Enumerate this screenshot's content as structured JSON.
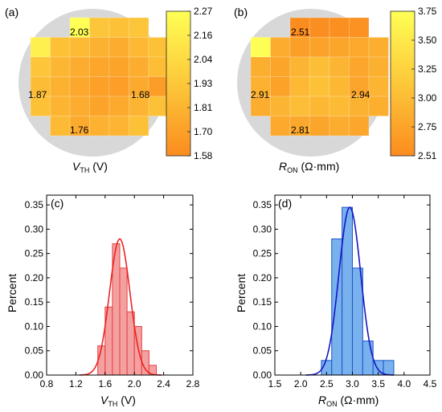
{
  "panels": {
    "a": {
      "label": "(a)",
      "xlabel_main": "V",
      "xlabel_sub": "TH",
      "xlabel_unit": " (V)",
      "colorbar": {
        "ticks": [
          "2.27",
          "2.16",
          "2.04",
          "1.93",
          "1.81",
          "1.70",
          "1.58"
        ]
      },
      "annotations": [
        "2.03",
        "1.87",
        "1.68",
        "1.76"
      ]
    },
    "b": {
      "label": "(b)",
      "xlabel_main": "R",
      "xlabel_sub": "ON",
      "xlabel_unit": " (Ω·mm)",
      "colorbar": {
        "ticks": [
          "3.75",
          "3.50",
          "3.25",
          "3.00",
          "2.75",
          "2.51"
        ]
      },
      "annotations": [
        "2.51",
        "2.91",
        "2.94",
        "2.81"
      ]
    },
    "c": {
      "label": "(c)",
      "ylabel": "Percent",
      "xlabel_main": "V",
      "xlabel_sub": "TH",
      "xlabel_unit": " (V)"
    },
    "d": {
      "label": "(d)",
      "ylabel": "Percent",
      "xlabel_main": "R",
      "xlabel_sub": "ON",
      "xlabel_unit": " (Ω·mm)"
    }
  },
  "colors": {
    "hist_c_fill": "#f4a0a0",
    "hist_c_edge": "#e34040",
    "fit_c": "#ee2222",
    "hist_d_fill": "#79b0ee",
    "hist_d_edge": "#1a57c4",
    "fit_d": "#1515c8",
    "wafer_bg": "#d8d8d8",
    "map_low": "#fb8c1f",
    "map_high": "#ffff55"
  },
  "chart_data": [
    {
      "type": "heatmap",
      "panel": "a",
      "title": "",
      "colorbar_range": [
        1.58,
        2.27
      ],
      "grid": [
        [
          null,
          null,
          2.27,
          1.92,
          1.9,
          1.92,
          null
        ],
        [
          2.18,
          1.9,
          1.86,
          1.8,
          1.78,
          1.85,
          1.9
        ],
        [
          1.92,
          1.83,
          1.78,
          1.74,
          1.72,
          1.78,
          1.88
        ],
        [
          1.87,
          1.8,
          1.75,
          1.7,
          1.69,
          1.76,
          1.68
        ],
        [
          1.9,
          1.82,
          1.78,
          1.72,
          1.76,
          1.82,
          1.9
        ],
        [
          null,
          1.86,
          1.76,
          1.8,
          1.82,
          1.9,
          null
        ],
        [
          null,
          null,
          null,
          null,
          null,
          null,
          null
        ]
      ]
    },
    {
      "type": "heatmap",
      "panel": "b",
      "title": "",
      "colorbar_range": [
        2.51,
        3.75
      ],
      "grid": [
        [
          null,
          null,
          2.51,
          2.53,
          2.55,
          2.57,
          null
        ],
        [
          3.75,
          2.85,
          2.72,
          2.75,
          2.78,
          2.82,
          2.88
        ],
        [
          2.88,
          2.78,
          2.95,
          3.05,
          2.95,
          2.8,
          2.9
        ],
        [
          2.91,
          2.75,
          3.0,
          3.08,
          2.98,
          2.78,
          2.94
        ],
        [
          2.85,
          2.95,
          3.05,
          2.98,
          3.02,
          2.92,
          2.88
        ],
        [
          null,
          2.82,
          2.81,
          2.78,
          2.85,
          2.8,
          null
        ],
        [
          null,
          null,
          null,
          null,
          null,
          null,
          null
        ]
      ]
    },
    {
      "type": "bar",
      "panel": "c",
      "xlim": [
        0.8,
        2.8
      ],
      "ylim": [
        0,
        0.37
      ],
      "xticks": [
        "0.8",
        "1.2",
        "1.6",
        "2.0",
        "2.4",
        "2.8"
      ],
      "yticks": [
        "0.00",
        "0.05",
        "0.10",
        "0.15",
        "0.20",
        "0.25",
        "0.30",
        "0.35"
      ],
      "bin_width": 0.1,
      "bins": [
        {
          "x0": 1.5,
          "value": 0.06
        },
        {
          "x0": 1.6,
          "value": 0.14
        },
        {
          "x0": 1.7,
          "value": 0.27
        },
        {
          "x0": 1.8,
          "value": 0.22
        },
        {
          "x0": 1.9,
          "value": 0.13
        },
        {
          "x0": 2.0,
          "value": 0.1
        },
        {
          "x0": 2.1,
          "value": 0.05
        },
        {
          "x0": 2.2,
          "value": 0.02
        }
      ],
      "fit": {
        "type": "gaussian",
        "mean": 1.8,
        "sigma": 0.14,
        "peak": 0.28,
        "range": [
          1.25,
          2.37
        ]
      }
    },
    {
      "type": "bar",
      "panel": "d",
      "xlim": [
        1.5,
        4.5
      ],
      "ylim": [
        0,
        0.37
      ],
      "xticks": [
        "1.5",
        "2.0",
        "2.5",
        "3.0",
        "3.5",
        "4.0",
        "4.5"
      ],
      "yticks": [
        "0.00",
        "0.05",
        "0.10",
        "0.15",
        "0.20",
        "0.25",
        "0.30",
        "0.35"
      ],
      "bin_width": 0.2,
      "bins": [
        {
          "x0": 2.4,
          "value": 0.03
        },
        {
          "x0": 2.6,
          "value": 0.28
        },
        {
          "x0": 2.8,
          "value": 0.345
        },
        {
          "x0": 3.0,
          "value": 0.22
        },
        {
          "x0": 3.2,
          "value": 0.07
        },
        {
          "x0": 3.4,
          "value": 0.03
        },
        {
          "x0": 3.6,
          "value": 0.03
        }
      ],
      "fit": {
        "type": "gaussian",
        "mean": 2.95,
        "sigma": 0.21,
        "peak": 0.345,
        "range": [
          2.1,
          3.8
        ]
      }
    }
  ]
}
